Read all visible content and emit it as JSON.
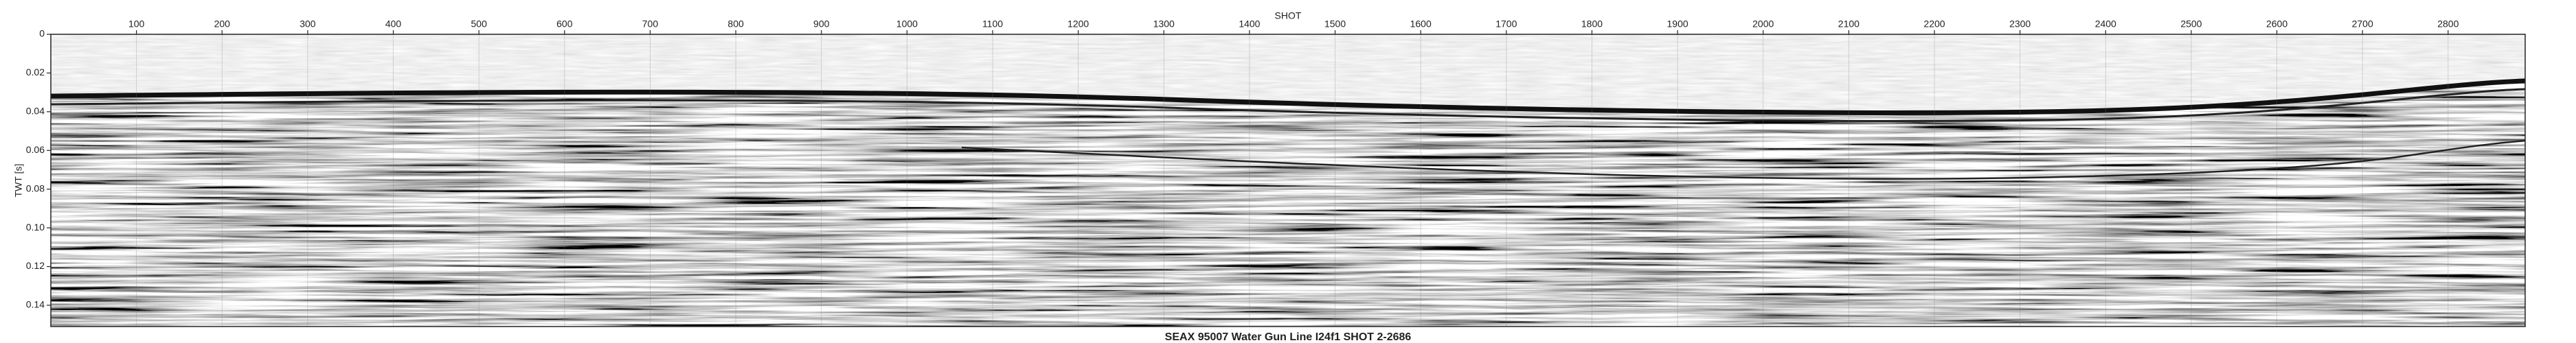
{
  "chart_data": {
    "type": "seismic",
    "title": "SEAX 95007 Water Gun Line I24f1 SHOT 2-2686",
    "xlabel": "SHOT",
    "ylabel": "TWT [s]",
    "xlim": [
      0,
      2890
    ],
    "xticks": [
      100,
      200,
      300,
      400,
      500,
      600,
      700,
      800,
      900,
      1000,
      1100,
      1200,
      1300,
      1400,
      1500,
      1600,
      1700,
      1800,
      1900,
      2000,
      2100,
      2200,
      2300,
      2400,
      2500,
      2600,
      2700,
      2800
    ],
    "ylim": [
      0,
      0.151
    ],
    "yticks": [
      0,
      0.02,
      0.04,
      0.06,
      0.08,
      {
        "value": 0.1,
        "label": "0.10"
      },
      0.12,
      0.14
    ],
    "grid": true
  }
}
